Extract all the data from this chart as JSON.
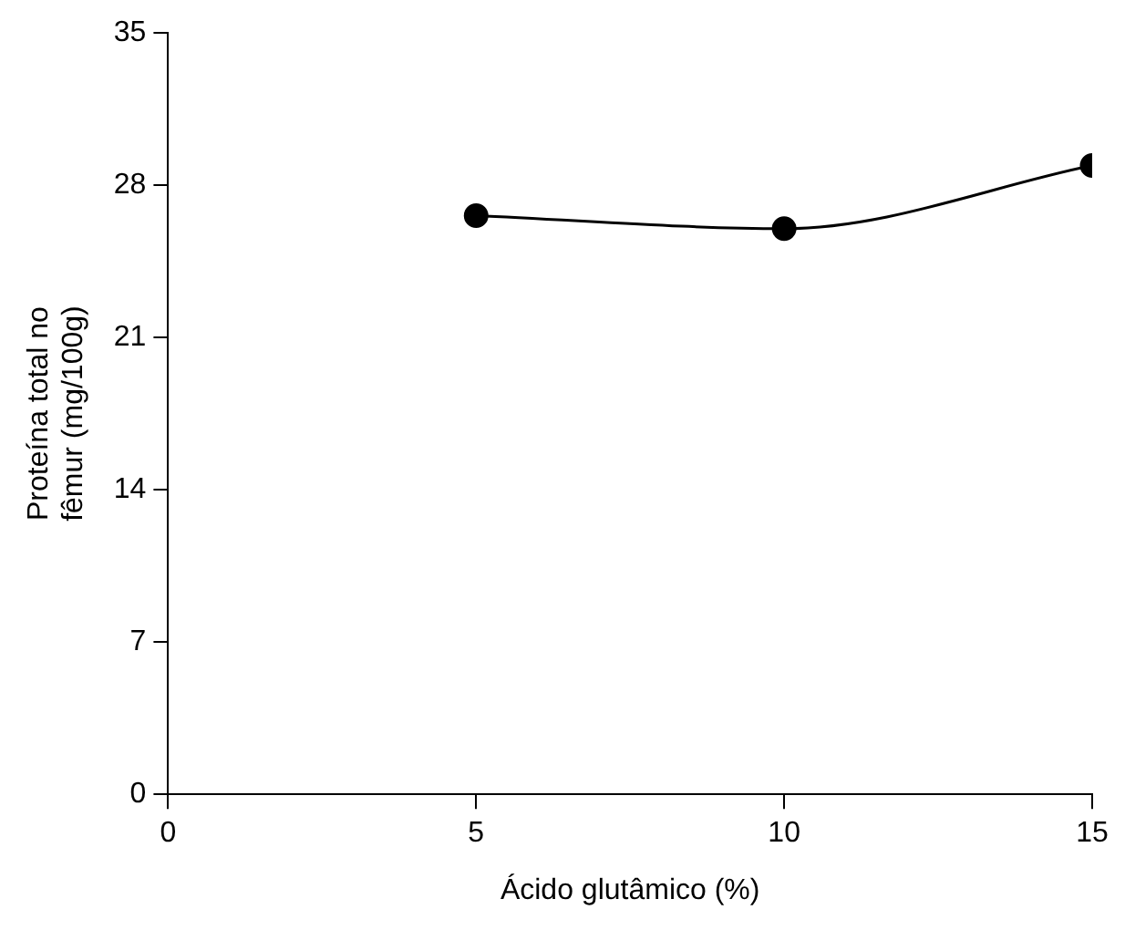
{
  "chart_data": {
    "type": "line",
    "xlabel": "Ácido glutâmico (%)",
    "ylabel": "Proteína total no\nfêmur (mg/100g)",
    "x": [
      5,
      10,
      15
    ],
    "series": [
      {
        "color": "#000000",
        "values": [
          26.6,
          26.0,
          28.9
        ]
      }
    ],
    "xlim": [
      0,
      15
    ],
    "xticks": [
      0,
      5,
      10,
      15
    ],
    "ylim": [
      0,
      35
    ],
    "yticks": [
      0,
      7,
      14,
      21,
      28,
      35
    ],
    "grid": false,
    "legend": false,
    "marker": "circle",
    "line_style": "solid"
  }
}
